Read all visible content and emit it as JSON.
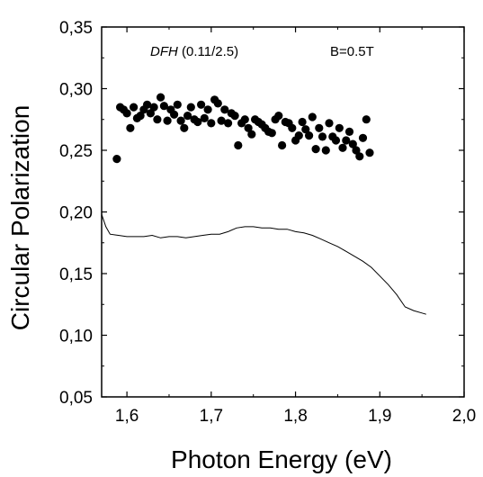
{
  "chart_data": {
    "type": "scatter",
    "title": "",
    "xlabel": "Photon Energy (eV)",
    "ylabel": "Circular Polarization",
    "xlim": [
      1.57,
      2.0
    ],
    "ylim": [
      0.05,
      0.35
    ],
    "x_ticks": [
      1.6,
      1.7,
      1.8,
      1.9,
      2.0
    ],
    "x_tick_labels": [
      "1,6",
      "1,7",
      "1,8",
      "1,9",
      "2,0"
    ],
    "y_ticks": [
      0.05,
      0.1,
      0.15,
      0.2,
      0.25,
      0.3,
      0.35
    ],
    "y_tick_labels": [
      "0,05",
      "0,10",
      "0,15",
      "0,20",
      "0,25",
      "0,30",
      "0,35"
    ],
    "grid": false,
    "annotations": {
      "sample_name": "DFH",
      "sample_params": " (0.11/2.5)",
      "field": "B=0.5T"
    },
    "series": [
      {
        "style": "dots",
        "color": "#000000",
        "x": [
          1.588,
          1.592,
          1.596,
          1.6,
          1.604,
          1.608,
          1.612,
          1.616,
          1.62,
          1.624,
          1.628,
          1.632,
          1.636,
          1.64,
          1.644,
          1.648,
          1.652,
          1.656,
          1.66,
          1.664,
          1.668,
          1.672,
          1.676,
          1.68,
          1.684,
          1.688,
          1.692,
          1.696,
          1.7,
          1.704,
          1.708,
          1.712,
          1.716,
          1.72,
          1.724,
          1.728,
          1.732,
          1.736,
          1.74,
          1.744,
          1.748,
          1.752,
          1.756,
          1.76,
          1.764,
          1.768,
          1.772,
          1.776,
          1.78,
          1.784,
          1.788,
          1.792,
          1.796,
          1.8,
          1.804,
          1.808,
          1.812,
          1.816,
          1.82,
          1.824,
          1.828,
          1.832,
          1.836,
          1.84,
          1.844,
          1.848,
          1.852,
          1.856,
          1.86,
          1.864,
          1.868,
          1.872,
          1.876,
          1.88,
          1.884,
          1.888
        ],
        "y": [
          0.243,
          0.285,
          0.283,
          0.28,
          0.268,
          0.285,
          0.276,
          0.278,
          0.283,
          0.287,
          0.28,
          0.285,
          0.275,
          0.293,
          0.286,
          0.274,
          0.283,
          0.279,
          0.287,
          0.274,
          0.268,
          0.278,
          0.285,
          0.275,
          0.273,
          0.287,
          0.276,
          0.283,
          0.272,
          0.291,
          0.288,
          0.274,
          0.283,
          0.272,
          0.28,
          0.278,
          0.254,
          0.272,
          0.275,
          0.268,
          0.263,
          0.275,
          0.273,
          0.271,
          0.268,
          0.265,
          0.264,
          0.275,
          0.278,
          0.254,
          0.273,
          0.272,
          0.268,
          0.258,
          0.262,
          0.273,
          0.267,
          0.262,
          0.277,
          0.251,
          0.268,
          0.261,
          0.25,
          0.272,
          0.261,
          0.258,
          0.268,
          0.252,
          0.258,
          0.265,
          0.255,
          0.25,
          0.245,
          0.26,
          0.275,
          0.248
        ]
      },
      {
        "style": "line",
        "color": "#000000",
        "x": [
          1.57,
          1.575,
          1.58,
          1.59,
          1.6,
          1.61,
          1.62,
          1.63,
          1.64,
          1.65,
          1.66,
          1.67,
          1.68,
          1.69,
          1.7,
          1.71,
          1.72,
          1.73,
          1.74,
          1.75,
          1.76,
          1.77,
          1.78,
          1.79,
          1.8,
          1.81,
          1.82,
          1.83,
          1.84,
          1.85,
          1.86,
          1.87,
          1.88,
          1.89,
          1.9,
          1.91,
          1.92,
          1.93,
          1.94,
          1.95,
          1.955
        ],
        "y": [
          0.198,
          0.188,
          0.182,
          0.181,
          0.18,
          0.18,
          0.18,
          0.181,
          0.179,
          0.18,
          0.18,
          0.179,
          0.18,
          0.181,
          0.182,
          0.182,
          0.184,
          0.187,
          0.188,
          0.188,
          0.187,
          0.187,
          0.186,
          0.186,
          0.184,
          0.183,
          0.181,
          0.178,
          0.175,
          0.172,
          0.168,
          0.164,
          0.16,
          0.155,
          0.148,
          0.141,
          0.133,
          0.123,
          0.12,
          0.118,
          0.117
        ]
      }
    ]
  }
}
